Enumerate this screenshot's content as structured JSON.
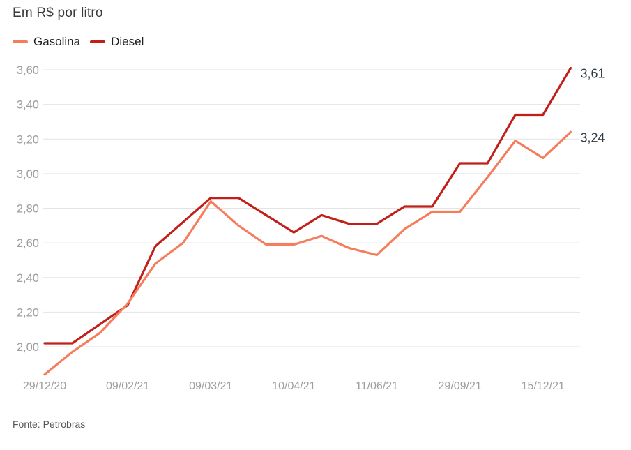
{
  "page": {
    "title": "Em R$ por litro",
    "source": "Fonte: Petrobras"
  },
  "chart_data": {
    "type": "line",
    "title": "Em R$ por litro",
    "xlabel": "",
    "ylabel": "Em R$ por litro",
    "ylim": [
      2.0,
      3.6
    ],
    "y_tick_step": 0.2,
    "grid": "horizontal",
    "legend_position": "top-left",
    "decimal_format": "comma",
    "source": "Fonte: Petrobras",
    "y_ticks": [
      "2,00",
      "2,20",
      "2,40",
      "2,60",
      "2,80",
      "3,00",
      "3,20",
      "3,40",
      "3,60"
    ],
    "x_tick_indices": [
      0,
      3,
      6,
      9,
      12,
      15,
      18
    ],
    "x_tick_labels": [
      "29/12/20",
      "09/02/21",
      "09/03/21",
      "10/04/21",
      "11/06/21",
      "29/09/21",
      "15/12/21"
    ],
    "n_points": 20,
    "series": [
      {
        "name": "Gasolina",
        "color": "#f57d5c",
        "end_label": "3,24",
        "values": [
          1.84,
          1.97,
          2.08,
          2.25,
          2.48,
          2.6,
          2.84,
          2.7,
          2.59,
          2.59,
          2.64,
          2.57,
          2.53,
          2.68,
          2.78,
          2.78,
          2.98,
          3.19,
          3.09,
          3.24
        ]
      },
      {
        "name": "Diesel",
        "color": "#c1201a",
        "end_label": "3,61",
        "values": [
          2.02,
          2.02,
          2.13,
          2.24,
          2.58,
          2.72,
          2.86,
          2.86,
          2.76,
          2.66,
          2.76,
          2.71,
          2.71,
          2.81,
          2.81,
          3.06,
          3.06,
          3.34,
          3.34,
          3.61
        ]
      }
    ]
  }
}
